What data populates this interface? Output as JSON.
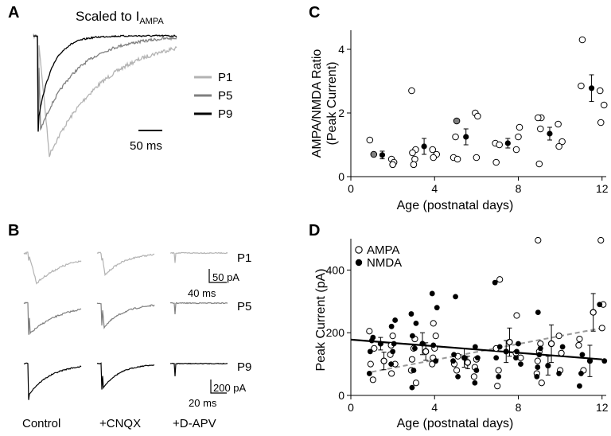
{
  "panels": {
    "A": {
      "letter": "A",
      "title_main": "Scaled to I",
      "title_sub": "AMPA",
      "legend": [
        {
          "label": "P1",
          "color": "#b3b3b3"
        },
        {
          "label": "P5",
          "color": "#7f7f7f"
        },
        {
          "label": "P9",
          "color": "#000000"
        }
      ],
      "scale_bar": "50 ms"
    },
    "B": {
      "letter": "B",
      "columns": [
        "Control",
        "+CNQX",
        "+D-APV"
      ],
      "rows": [
        {
          "label": "P1",
          "color": "#b3b3b3"
        },
        {
          "label": "P5",
          "color": "#7f7f7f"
        },
        {
          "label": "P9",
          "color": "#000000"
        }
      ],
      "scale1": {
        "amp": "50 pA",
        "time": "40 ms"
      },
      "scale2": {
        "amp": "200 pA",
        "time": "20 ms"
      }
    },
    "C": {
      "letter": "C"
    },
    "D": {
      "letter": "D"
    }
  },
  "chart_data": [
    {
      "id": "C",
      "type": "scatter",
      "ylabel_line1": "AMPA/NMDA Ratio",
      "ylabel_line2": "(Peak Current)",
      "xlabel": "Age (postnatal days)",
      "xlim": [
        0,
        12.2
      ],
      "ylim": [
        0,
        4.6
      ],
      "xticks": [
        0,
        4,
        8,
        12
      ],
      "yticks": [
        0,
        2,
        4
      ],
      "individual": [
        [
          1,
          1.15
        ],
        [
          1,
          0.7
        ],
        [
          2,
          0.55
        ],
        [
          2,
          0.45
        ],
        [
          2,
          0.38
        ],
        [
          3,
          2.7
        ],
        [
          3,
          0.85
        ],
        [
          3,
          0.75
        ],
        [
          3,
          0.55
        ],
        [
          3,
          0.38
        ],
        [
          4,
          0.85
        ],
        [
          4,
          0.7
        ],
        [
          4,
          0.6
        ],
        [
          5,
          1.75
        ],
        [
          5,
          1.25
        ],
        [
          5,
          0.6
        ],
        [
          5,
          0.55
        ],
        [
          6,
          2.0
        ],
        [
          6,
          1.9
        ],
        [
          6,
          0.6
        ],
        [
          7,
          1.05
        ],
        [
          7,
          1.0
        ],
        [
          7,
          0.45
        ],
        [
          8,
          1.55
        ],
        [
          8,
          1.25
        ],
        [
          8,
          0.85
        ],
        [
          9,
          1.85
        ],
        [
          9,
          1.85
        ],
        [
          9,
          1.5
        ],
        [
          9,
          0.4
        ],
        [
          10,
          1.65
        ],
        [
          10,
          1.1
        ],
        [
          10,
          0.95
        ],
        [
          11,
          4.3
        ],
        [
          11,
          2.85
        ],
        [
          12,
          2.7
        ],
        [
          12,
          2.25
        ],
        [
          12,
          1.7
        ]
      ],
      "filled_individual": [
        [
          1,
          0.7
        ],
        [
          5,
          1.75
        ]
      ],
      "means": [
        {
          "x": 1.5,
          "y": 0.68,
          "err": 0.12
        },
        {
          "x": 3.5,
          "y": 0.95,
          "err": 0.25
        },
        {
          "x": 5.5,
          "y": 1.25,
          "err": 0.25
        },
        {
          "x": 7.5,
          "y": 1.05,
          "err": 0.15
        },
        {
          "x": 9.5,
          "y": 1.35,
          "err": 0.2
        },
        {
          "x": 11.5,
          "y": 2.78,
          "err": 0.42
        }
      ]
    },
    {
      "id": "D",
      "type": "scatter",
      "ylabel": "Peak Current (pA)",
      "xlabel": "Age (postnatal days)",
      "xlim": [
        0,
        12.2
      ],
      "ylim": [
        0,
        500
      ],
      "xticks": [
        0,
        4,
        8,
        12
      ],
      "yticks": [
        0,
        200,
        400
      ],
      "series": [
        {
          "name": "AMPA",
          "marker": "open",
          "points": [
            [
              1,
              205
            ],
            [
              1,
              150
            ],
            [
              1,
              100
            ],
            [
              1,
              50
            ],
            [
              2,
              190
            ],
            [
              2,
              160
            ],
            [
              2,
              130
            ],
            [
              2,
              100
            ],
            [
              2,
              70
            ],
            [
              3,
              180
            ],
            [
              3,
              150
            ],
            [
              3,
              115
            ],
            [
              3,
              80
            ],
            [
              3,
              40
            ],
            [
              4,
              230
            ],
            [
              4,
              190
            ],
            [
              4,
              150
            ],
            [
              4,
              120
            ],
            [
              4,
              100
            ],
            [
              5,
              125
            ],
            [
              5,
              100
            ],
            [
              5,
              80
            ],
            [
              6,
              115
            ],
            [
              6,
              90
            ],
            [
              6,
              60
            ],
            [
              7,
              370
            ],
            [
              7,
              150
            ],
            [
              7,
              80
            ],
            [
              7,
              30
            ],
            [
              8,
              255
            ],
            [
              8,
              135
            ],
            [
              8,
              120
            ],
            [
              9,
              495
            ],
            [
              9,
              165
            ],
            [
              9,
              140
            ],
            [
              9,
              110
            ],
            [
              9,
              70
            ],
            [
              9,
              40
            ],
            [
              10,
              190
            ],
            [
              10,
              135
            ],
            [
              10,
              80
            ],
            [
              11,
              180
            ],
            [
              11,
              160
            ],
            [
              11,
              80
            ],
            [
              12,
              495
            ],
            [
              12,
              290
            ],
            [
              12,
              215
            ]
          ],
          "trend": {
            "x": [
              1,
              12
            ],
            "y": [
              75,
              215
            ]
          },
          "means": [
            {
              "x": 1.5,
              "y": 110,
              "err": 28
            },
            {
              "x": 3.5,
              "y": 140,
              "err": 28
            },
            {
              "x": 5.5,
              "y": 105,
              "err": 20
            },
            {
              "x": 7.5,
              "y": 170,
              "err": 45
            },
            {
              "x": 9.5,
              "y": 165,
              "err": 60
            },
            {
              "x": 11.5,
              "y": 265,
              "err": 60
            }
          ]
        },
        {
          "name": "NMDA",
          "marker": "filled",
          "points": [
            [
              1,
              185
            ],
            [
              1,
              175
            ],
            [
              1,
              140
            ],
            [
              1,
              70
            ],
            [
              2,
              240
            ],
            [
              2,
              220
            ],
            [
              2,
              165
            ],
            [
              2,
              140
            ],
            [
              2,
              100
            ],
            [
              3,
              260
            ],
            [
              3,
              230
            ],
            [
              3,
              190
            ],
            [
              3,
              150
            ],
            [
              3,
              80
            ],
            [
              3,
              25
            ],
            [
              4,
              325
            ],
            [
              4,
              280
            ],
            [
              4,
              160
            ],
            [
              4,
              110
            ],
            [
              5,
              315
            ],
            [
              5,
              130
            ],
            [
              5,
              110
            ],
            [
              5,
              60
            ],
            [
              6,
              155
            ],
            [
              6,
              120
            ],
            [
              6,
              80
            ],
            [
              6,
              40
            ],
            [
              7,
              360
            ],
            [
              7,
              155
            ],
            [
              7,
              120
            ],
            [
              7,
              60
            ],
            [
              8,
              165
            ],
            [
              8,
              140
            ],
            [
              8,
              120
            ],
            [
              8,
              100
            ],
            [
              9,
              265
            ],
            [
              9,
              150
            ],
            [
              9,
              130
            ],
            [
              9,
              90
            ],
            [
              9,
              60
            ],
            [
              10,
              155
            ],
            [
              10,
              70
            ],
            [
              11,
              130
            ],
            [
              11,
              70
            ],
            [
              11,
              30
            ],
            [
              12,
              290
            ],
            [
              12,
              110
            ]
          ],
          "trend": {
            "x": [
              0,
              12
            ],
            "y": [
              178,
              115
            ]
          },
          "means": [
            {
              "x": 1.5,
              "y": 165,
              "err": 20
            },
            {
              "x": 3.5,
              "y": 165,
              "err": 35
            },
            {
              "x": 5.5,
              "y": 120,
              "err": 30
            },
            {
              "x": 7.5,
              "y": 140,
              "err": 35
            },
            {
              "x": 9.5,
              "y": 95,
              "err": 30
            },
            {
              "x": 11.5,
              "y": 110,
              "err": 50
            }
          ]
        }
      ]
    }
  ]
}
